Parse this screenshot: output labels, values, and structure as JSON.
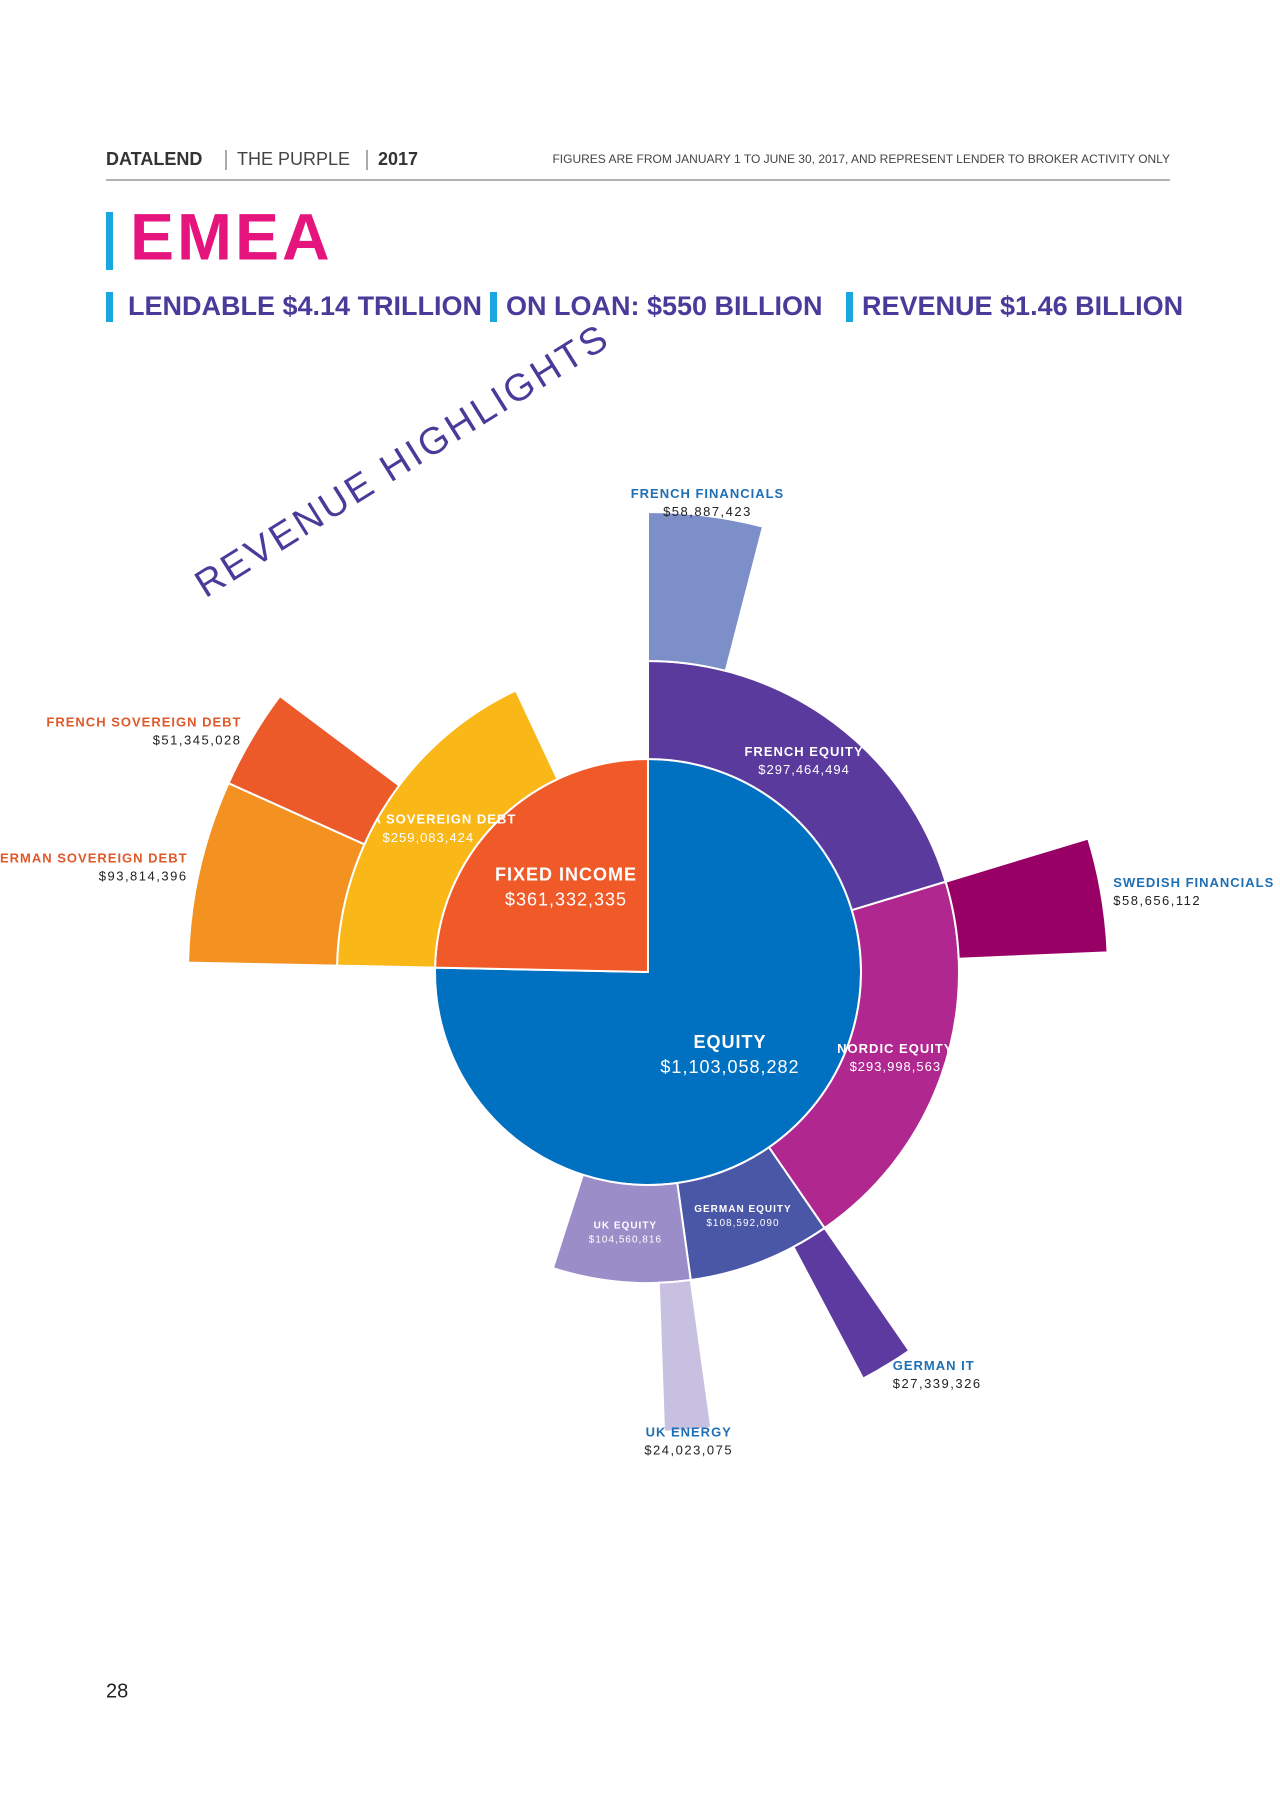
{
  "header": {
    "brand": "DATALEND",
    "publication": "THE PURPLE",
    "year": "2017",
    "note": "FIGURES ARE FROM JANUARY 1 TO JUNE 30, 2017, AND REPRESENT LENDER TO BROKER ACTIVITY ONLY"
  },
  "title": "EMEA",
  "stats": [
    "LENDABLE $4.14 TRILLION",
    "ON LOAN: $550 BILLION",
    "REVENUE $1.46 BILLION"
  ],
  "page_number": "28",
  "chart_data": {
    "type": "sunburst",
    "title": "REVENUE HIGHLIGHTS",
    "nodes": [
      {
        "name": "EQUITY",
        "value": 1103058282,
        "value_label": "$1,103,058,282",
        "color": "#0070c0",
        "children": [
          {
            "name": "FRENCH EQUITY",
            "value": 297464494,
            "value_label": "$297,464,494",
            "color": "#5b3a9e",
            "children": [
              {
                "name": "FRENCH FINANCIALS",
                "value": 58887423,
                "value_label": "$58,887,423",
                "color": "#7d8fc8"
              }
            ]
          },
          {
            "name": "NORDIC EQUITY",
            "value": 293998563,
            "value_label": "$293,998,563",
            "color": "#b0278f",
            "children": [
              {
                "name": "SWEDISH FINANCIALS",
                "value": 58656112,
                "value_label": "$58,656,112",
                "color": "#990066"
              }
            ]
          },
          {
            "name": "GERMAN EQUITY",
            "value": 108592090,
            "value_label": "$108,592,090",
            "color": "#4a56a6",
            "children": [
              {
                "name": "GERMAN IT",
                "value": 27339326,
                "value_label": "$27,339,326",
                "color": "#5c3aa0"
              }
            ]
          },
          {
            "name": "UK EQUITY",
            "value": 104560816,
            "value_label": "$104,560,816",
            "color": "#9b8ec8",
            "children": [
              {
                "name": "UK ENERGY",
                "value": 24023075,
                "value_label": "$24,023,075",
                "color": "#c8c0e0"
              }
            ]
          }
        ]
      },
      {
        "name": "FIXED INCOME",
        "value": 361332335,
        "value_label": "$361,332,335",
        "color": "#f05a28",
        "children": [
          {
            "name": "EMEA SOVEREIGN DEBT",
            "value": 259083424,
            "value_label": "$259,083,424",
            "color": "#f9b718",
            "children": [
              {
                "name": "GERMAN SOVEREIGN DEBT",
                "value": 93814396,
                "value_label": "$93,814,396",
                "color": "#f39121"
              },
              {
                "name": "FRENCH SOVEREIGN DEBT",
                "value": 51345028,
                "value_label": "$51,345,028",
                "color": "#ec5a2a"
              }
            ]
          }
        ]
      }
    ]
  }
}
